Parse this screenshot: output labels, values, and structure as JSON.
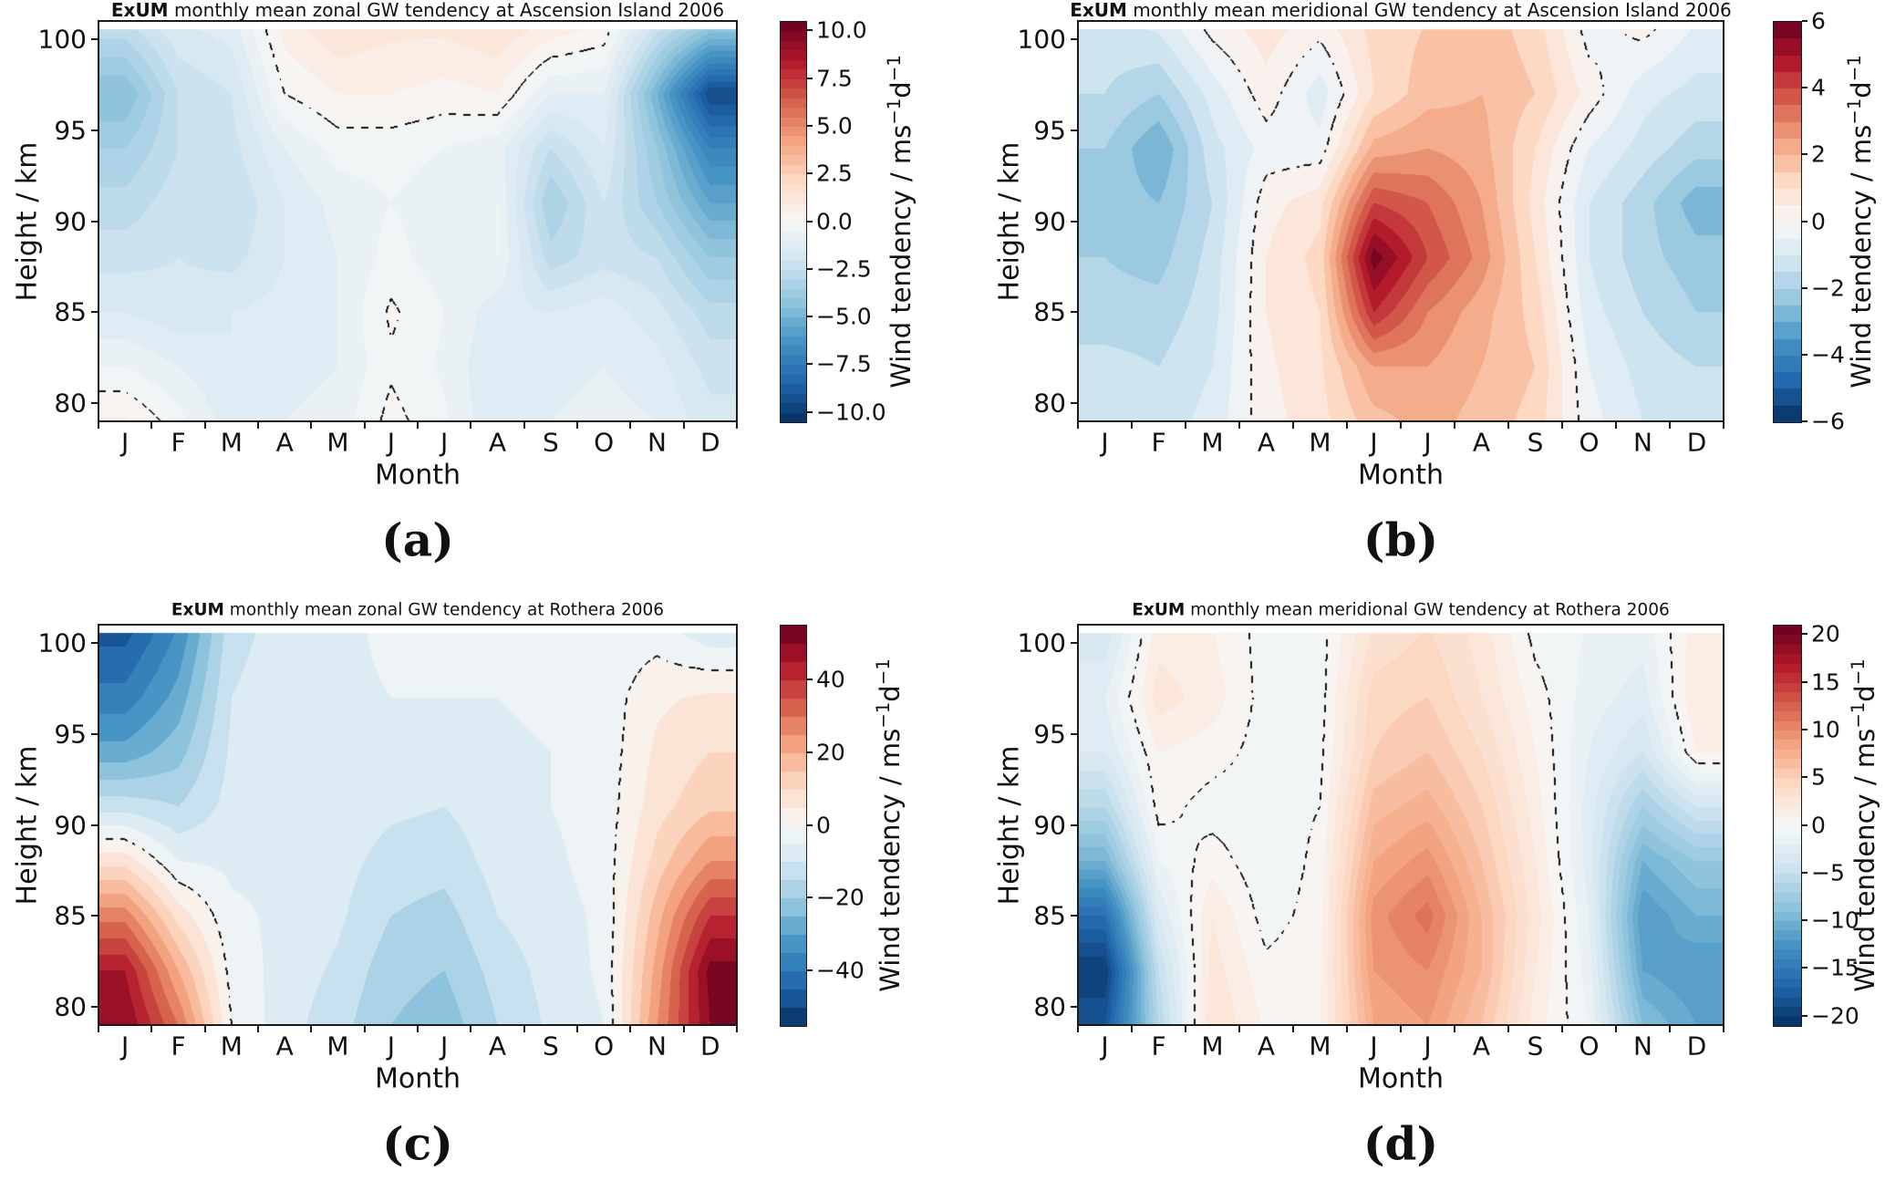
{
  "figure": {
    "background": "#ffffff"
  },
  "months": [
    "J",
    "F",
    "M",
    "A",
    "M",
    "J",
    "J",
    "A",
    "S",
    "O",
    "N",
    "D"
  ],
  "axis": {
    "xlabel": "Month",
    "ylabel": "Height / km",
    "y_tick_labels": [
      "100",
      "95",
      "90",
      "85",
      "80"
    ],
    "y_tick_values": [
      100,
      95,
      90,
      85,
      80
    ],
    "ymin": 79,
    "ymax": 101
  },
  "colorbar_label": {
    "prefix": "Wind tendency / ms",
    "sup1": "−1",
    "mid": "d",
    "sup2": "−1"
  },
  "colormap": [
    "#053061",
    "#2166ac",
    "#4393c3",
    "#92c5de",
    "#d1e5f0",
    "#f7f7f7",
    "#fddbc7",
    "#f4a582",
    "#d6604d",
    "#b2182b",
    "#67001f"
  ],
  "panels": [
    {
      "id": "a",
      "letter": "(a)",
      "title_bold": "ExUM",
      "title_rest": " monthly mean zonal GW tendency at Ascension Island 2006",
      "chart_index": 0,
      "data_ymax": 100.55,
      "colorbar": {
        "vmax": 10.5,
        "step": 0.5,
        "ticks": [
          {
            "v": 10,
            "label": "10.0"
          },
          {
            "v": 7.5,
            "label": "7.5"
          },
          {
            "v": 5,
            "label": "5.0"
          },
          {
            "v": 2.5,
            "label": "2.5"
          },
          {
            "v": 0,
            "label": "0.0"
          },
          {
            "v": -2.5,
            "label": "−2.5"
          },
          {
            "v": -5,
            "label": "−5.0"
          },
          {
            "v": -7.5,
            "label": "−7.5"
          },
          {
            "v": -10,
            "label": "−10.0"
          }
        ]
      }
    },
    {
      "id": "b",
      "letter": "(b)",
      "title_bold": "ExUM",
      "title_rest": " monthly mean meridional GW tendency at Ascension Island 2006",
      "chart_index": 1,
      "data_ymax": 100.55,
      "colorbar": {
        "vmax": 6,
        "step": 0.5,
        "ticks": [
          {
            "v": 6,
            "label": "6"
          },
          {
            "v": 4,
            "label": "4"
          },
          {
            "v": 2,
            "label": "2"
          },
          {
            "v": 0,
            "label": "0"
          },
          {
            "v": -2,
            "label": "−2"
          },
          {
            "v": -4,
            "label": "−4"
          },
          {
            "v": -6,
            "label": "−6"
          }
        ]
      }
    },
    {
      "id": "c",
      "letter": "(c)",
      "title_bold": "ExUM",
      "title_rest": " monthly mean zonal GW tendency at Rothera 2006",
      "chart_index": 2,
      "data_ymax": 100.55,
      "colorbar": {
        "vmax": 55,
        "step": 5,
        "ticks": [
          {
            "v": 40,
            "label": "40"
          },
          {
            "v": 20,
            "label": "20"
          },
          {
            "v": 0,
            "label": "0"
          },
          {
            "v": -20,
            "label": "−20"
          },
          {
            "v": -40,
            "label": "−40"
          }
        ]
      }
    },
    {
      "id": "d",
      "letter": "(d)",
      "title_bold": "ExUM",
      "title_rest": " monthly mean meridional GW tendency at Rothera 2006",
      "chart_index": 3,
      "data_ymax": 100.55,
      "colorbar": {
        "vmax": 21,
        "step": 1,
        "ticks": [
          {
            "v": 20,
            "label": "20"
          },
          {
            "v": 15,
            "label": "15"
          },
          {
            "v": 10,
            "label": "10"
          },
          {
            "v": 5,
            "label": "5"
          },
          {
            "v": 0,
            "label": "0"
          },
          {
            "v": -5,
            "label": "−5"
          },
          {
            "v": -10,
            "label": "−10"
          },
          {
            "v": -15,
            "label": "−15"
          },
          {
            "v": -20,
            "label": "−20"
          }
        ]
      }
    }
  ],
  "chart_data": [
    {
      "type": "heatmap",
      "panel": "a",
      "title": "ExUM monthly mean zonal GW tendency at Ascension Island 2006",
      "site": "Ascension Island",
      "component": "zonal",
      "year": 2006,
      "xlabel": "Month",
      "ylabel": "Height / km",
      "units": "ms−1d−1",
      "zero_contour": "dashed",
      "x_categories": [
        "J",
        "F",
        "M",
        "A",
        "M",
        "J",
        "J",
        "A",
        "S",
        "O",
        "N",
        "D"
      ],
      "y_levels_km": [
        101,
        97,
        94,
        91,
        88,
        85,
        82,
        79
      ],
      "vmin": -10.5,
      "vmax": 10.5,
      "colorbar_ticks": [
        10.0,
        7.5,
        5.0,
        2.5,
        0.0,
        -2.5,
        -5.0,
        -7.5,
        -10.0
      ],
      "values": [
        [
          -2.5,
          -1.5,
          -1.2,
          0.8,
          1.5,
          1.2,
          1.2,
          1.5,
          1.0,
          0.5,
          -2.0,
          -3.5
        ],
        [
          -4.5,
          -2.5,
          -2.0,
          0.0,
          0.5,
          0.5,
          0.3,
          0.5,
          -1.0,
          -1.0,
          -5.0,
          -9.5
        ],
        [
          -3.5,
          -2.5,
          -2.2,
          -1.0,
          -0.3,
          -0.3,
          -0.5,
          -0.8,
          -2.5,
          -1.5,
          -4.0,
          -7.0
        ],
        [
          -2.8,
          -2.2,
          -2.5,
          -1.5,
          -0.8,
          -0.5,
          -0.8,
          -0.5,
          -3.5,
          -2.0,
          -3.5,
          -5.5
        ],
        [
          -2.2,
          -2.0,
          -2.2,
          -1.5,
          -1.0,
          -0.3,
          -0.8,
          -0.5,
          -2.8,
          -2.2,
          -2.5,
          -4.0
        ],
        [
          -1.5,
          -1.8,
          -1.5,
          -1.3,
          -1.0,
          0.1,
          -0.5,
          -1.3,
          -1.5,
          -1.2,
          -1.8,
          -2.8
        ],
        [
          -0.5,
          -1.0,
          -1.5,
          -1.2,
          -1.0,
          -0.1,
          -0.6,
          -1.5,
          -1.2,
          -1.0,
          -1.3,
          -2.2
        ],
        [
          0.6,
          -0.3,
          -1.3,
          -1.0,
          -0.8,
          0.2,
          -0.4,
          -1.5,
          -1.0,
          -0.8,
          -1.0,
          -1.8
        ]
      ]
    },
    {
      "type": "heatmap",
      "panel": "b",
      "title": "ExUM monthly mean meridional GW tendency at Ascension Island 2006",
      "site": "Ascension Island",
      "component": "meridional",
      "year": 2006,
      "xlabel": "Month",
      "ylabel": "Height / km",
      "units": "ms−1d−1",
      "zero_contour": "dashed",
      "x_categories": [
        "J",
        "F",
        "M",
        "A",
        "M",
        "J",
        "J",
        "A",
        "S",
        "O",
        "N",
        "D"
      ],
      "y_levels_km": [
        101,
        97,
        94,
        91,
        88,
        85,
        82,
        79
      ],
      "vmin": -6,
      "vmax": 6,
      "colorbar_ticks": [
        6,
        4,
        2,
        0,
        -2,
        -4,
        -6
      ],
      "values": [
        [
          -1.2,
          -0.8,
          0.3,
          0.8,
          0.3,
          1.2,
          1.5,
          1.8,
          1.2,
          -0.3,
          0.3,
          -0.5
        ],
        [
          -1.5,
          -2.0,
          -0.8,
          0.3,
          -0.8,
          1.0,
          1.8,
          2.0,
          1.5,
          0.3,
          -0.8,
          -1.2
        ],
        [
          -2.0,
          -3.0,
          -1.2,
          -0.3,
          -0.3,
          2.2,
          2.5,
          2.2,
          1.0,
          -0.5,
          -1.2,
          -1.8
        ],
        [
          -2.2,
          -2.5,
          -1.5,
          0.3,
          0.8,
          4.0,
          3.5,
          2.5,
          0.8,
          -1.0,
          -1.8,
          -2.8
        ],
        [
          -2.0,
          -2.2,
          -1.3,
          0.5,
          1.2,
          5.8,
          4.0,
          2.8,
          1.0,
          -1.0,
          -1.8,
          -2.3
        ],
        [
          -1.8,
          -1.8,
          -1.2,
          0.5,
          1.0,
          4.5,
          3.0,
          2.2,
          1.3,
          -0.8,
          -1.5,
          -2.0
        ],
        [
          -1.3,
          -1.5,
          -1.0,
          0.4,
          0.9,
          2.5,
          2.5,
          2.0,
          1.5,
          -0.5,
          -1.2,
          -1.5
        ],
        [
          -1.2,
          -1.3,
          -0.8,
          0.3,
          0.8,
          1.8,
          2.2,
          1.8,
          1.3,
          -0.3,
          -1.0,
          -1.2
        ]
      ]
    },
    {
      "type": "heatmap",
      "panel": "c",
      "title": "ExUM monthly mean zonal GW tendency at Rothera 2006",
      "site": "Rothera",
      "component": "zonal",
      "year": 2006,
      "xlabel": "Month",
      "ylabel": "Height / km",
      "units": "ms−1d−1",
      "zero_contour": "dashed",
      "x_categories": [
        "J",
        "F",
        "M",
        "A",
        "M",
        "J",
        "J",
        "A",
        "S",
        "O",
        "N",
        "D"
      ],
      "y_levels_km": [
        101,
        97,
        94,
        91,
        88,
        85,
        82,
        79
      ],
      "vmin": -55,
      "vmax": 55,
      "colorbar_ticks": [
        40,
        20,
        0,
        -20,
        -40
      ],
      "values": [
        [
          -48,
          -35,
          -12,
          -8,
          -6,
          -4,
          -4,
          -4,
          -4,
          -3,
          -3,
          -10
        ],
        [
          -38,
          -28,
          -10,
          -7,
          -6,
          -5,
          -5,
          -5,
          -4,
          -3,
          4,
          6
        ],
        [
          -28,
          -22,
          -9,
          -6,
          -6,
          -6,
          -7,
          -6,
          -5,
          -3,
          6,
          10
        ],
        [
          -12,
          -15,
          -8,
          -6,
          -7,
          -9,
          -10,
          -7,
          -5,
          -3,
          8,
          14
        ],
        [
          8,
          -5,
          -6,
          -6,
          -8,
          -12,
          -13,
          -8,
          -6,
          -3,
          12,
          25
        ],
        [
          28,
          8,
          -4,
          -6,
          -9,
          -15,
          -17,
          -10,
          -7,
          -4,
          18,
          40
        ],
        [
          45,
          20,
          -2,
          -7,
          -11,
          -18,
          -20,
          -13,
          -8,
          -4,
          22,
          52
        ],
        [
          50,
          30,
          0,
          -8,
          -13,
          -20,
          -23,
          -15,
          -9,
          -5,
          25,
          50
        ]
      ]
    },
    {
      "type": "heatmap",
      "panel": "d",
      "title": "ExUM monthly mean meridional GW tendency at Rothera 2006",
      "site": "Rothera",
      "component": "meridional",
      "year": 2006,
      "xlabel": "Month",
      "ylabel": "Height / km",
      "units": "ms−1d−1",
      "zero_contour": "dashed",
      "x_categories": [
        "J",
        "F",
        "M",
        "A",
        "M",
        "J",
        "J",
        "A",
        "S",
        "O",
        "N",
        "D"
      ],
      "y_levels_km": [
        101,
        97,
        94,
        91,
        88,
        85,
        82,
        79
      ],
      "vmin": -21,
      "vmax": 21,
      "colorbar_ticks": [
        20,
        15,
        10,
        5,
        0,
        -5,
        -10,
        -15,
        -20
      ],
      "values": [
        [
          -4,
          1.5,
          1,
          -0.5,
          -0.5,
          3,
          4,
          2.5,
          -0.5,
          -1,
          -1.5,
          1.5
        ],
        [
          -2,
          2.5,
          1.5,
          -0.5,
          -0.5,
          4.5,
          5,
          3,
          0.5,
          -1.5,
          -2.5,
          2
        ],
        [
          -3,
          1,
          0.5,
          -0.5,
          -0.3,
          5,
          6,
          4,
          1,
          -2,
          -4,
          1
        ],
        [
          -6,
          0.5,
          -0.5,
          -0.5,
          0,
          6.5,
          7.5,
          5,
          1.5,
          -2.5,
          -7,
          -4
        ],
        [
          -10,
          -1,
          0.5,
          -0.8,
          0.3,
          8,
          9.5,
          6,
          2,
          -2.5,
          -10,
          -8
        ],
        [
          -16,
          -3,
          2,
          -0.5,
          0.5,
          9.5,
          11.5,
          7,
          2.5,
          -2,
          -12,
          -10
        ],
        [
          -20,
          -5,
          2.5,
          0.3,
          0.8,
          9,
          10,
          7,
          2,
          -1.5,
          -11,
          -12
        ],
        [
          -18,
          -6,
          3,
          0.8,
          1,
          8,
          9,
          6,
          1.5,
          -1,
          -9,
          -11
        ]
      ]
    }
  ]
}
